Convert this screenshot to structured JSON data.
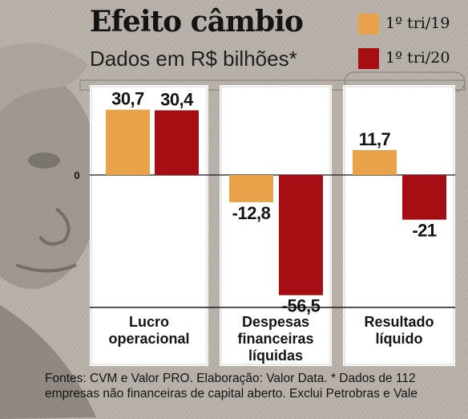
{
  "title": "Efeito câmbio",
  "subtitle": "Dados em R$ bilhões*",
  "footer": {
    "line1": "Fontes: CVM e Valor PRO. Elaboração: Valor Data. * Dados de 112",
    "line2": "empresas não financeiras de capital aberto. Exclui Petrobras e Vale"
  },
  "colors": {
    "q1_19": "#e8a34a",
    "q1_20": "#a50f14"
  },
  "chart_data": {
    "type": "bar",
    "categories": [
      [
        "Lucro",
        "operacional"
      ],
      [
        "Despesas",
        "financeiras",
        "líquidas"
      ],
      [
        "Resultado",
        "líquido"
      ]
    ],
    "series": [
      {
        "name": "1º tri/19",
        "values": [
          30.7,
          -12.8,
          11.7
        ],
        "labels": [
          "30,7",
          "-12,8",
          "11,7"
        ]
      },
      {
        "name": "1º tri/20",
        "values": [
          30.4,
          -56.5,
          -21
        ],
        "labels": [
          "30,4",
          "-56,5",
          "-21"
        ]
      }
    ],
    "zero_label": "0",
    "legend": "top-right"
  }
}
